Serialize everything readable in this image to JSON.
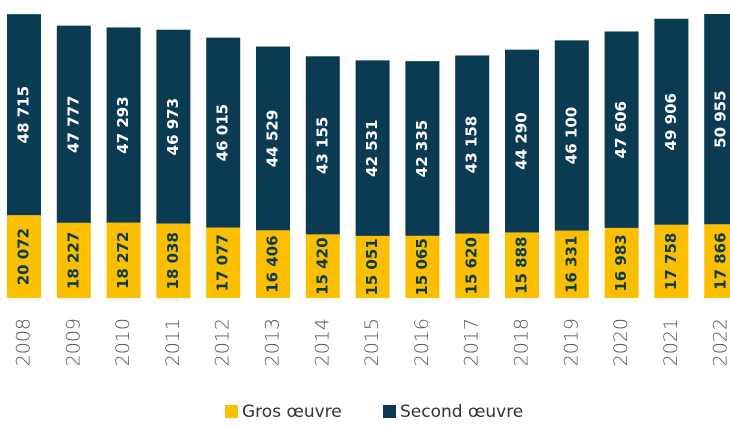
{
  "chart_data": {
    "type": "stacked_bar",
    "categories": [
      "2008",
      "2009",
      "2010",
      "2011",
      "2012",
      "2013",
      "2014",
      "2015",
      "2016",
      "2017",
      "2018",
      "2019",
      "2020",
      "2021",
      "2022"
    ],
    "series": [
      {
        "name": "Gros œuvre",
        "color": "#fcbf00",
        "values": [
          20072,
          18227,
          18272,
          18038,
          17077,
          16406,
          15420,
          15051,
          15065,
          15620,
          15888,
          16331,
          16983,
          17758,
          17866
        ],
        "value_labels": [
          "20 072",
          "18 227",
          "18 272",
          "18 038",
          "17 077",
          "16 406",
          "15 420",
          "15 051",
          "15 065",
          "15 620",
          "15 888",
          "16 331",
          "16 983",
          "17 758",
          "17 866"
        ]
      },
      {
        "name": "Second œuvre",
        "color": "#0b3b52",
        "values": [
          48715,
          47777,
          47293,
          46973,
          46015,
          44529,
          43155,
          42531,
          42335,
          43158,
          44290,
          46100,
          47606,
          49906,
          50955
        ],
        "value_labels": [
          "48 715",
          "47 777",
          "47 293",
          "46 973",
          "46 015",
          "44 529",
          "43 155",
          "42 531",
          "42 335",
          "43 158",
          "44 290",
          "46 100",
          "47 606",
          "49 906",
          "50 955"
        ]
      }
    ],
    "legend": "bottom"
  }
}
